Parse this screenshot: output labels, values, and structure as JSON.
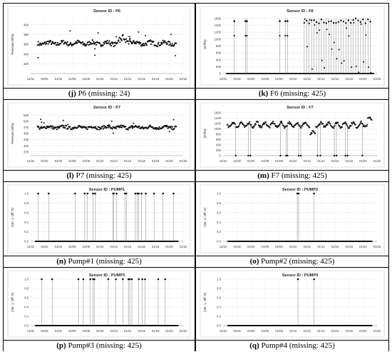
{
  "panels": [
    {
      "id": "j",
      "letter": "j",
      "caption": "P6 (missing: 24)",
      "chart_data": {
        "type": "scatter",
        "title": "Sensor ID : P6",
        "ylabel": "Pressure (kPa)",
        "ylim": [
          300,
          420
        ],
        "yticks": [
          320,
          340,
          360,
          380,
          400
        ],
        "xticks": [
          "12/31",
          "01/02",
          "01/04",
          "01/06",
          "01/08",
          "01/10",
          "01/12",
          "01/14",
          "01/16",
          "01/18",
          "01/20",
          "01/22"
        ],
        "grid": true,
        "pattern": "noisy-level",
        "base": 362
      }
    },
    {
      "id": "k",
      "letter": "k",
      "caption": "F6 (missing: 425)",
      "chart_data": {
        "type": "scatter",
        "title": "Sensor ID : F6",
        "ylabel": "(m³/hr)",
        "ylim": [
          0,
          1700
        ],
        "yticks": [
          0,
          200,
          400,
          600,
          800,
          1000,
          1200,
          1400,
          1600
        ],
        "xticks": [
          "12/31",
          "01/02",
          "01/04",
          "01/06",
          "01/08",
          "01/10",
          "01/12",
          "01/14",
          "01/16",
          "01/18",
          "01/20",
          "01/22"
        ],
        "grid": true,
        "pattern": "switching-flow",
        "base": 0,
        "high": 1600
      }
    },
    {
      "id": "l",
      "letter": "l",
      "caption": "P7 (missing: 425)",
      "chart_data": {
        "type": "scatter",
        "title": "Sensor ID : P7",
        "ylabel": "Pressure (kPa)",
        "ylim": [
          360,
          540
        ],
        "yticks": [
          375,
          400,
          425,
          450,
          475,
          500,
          525
        ],
        "xticks": [
          "12/31",
          "01/02",
          "01/04",
          "01/06",
          "01/08",
          "01/10",
          "01/12",
          "01/14",
          "01/16",
          "01/18",
          "01/20",
          "01/22"
        ],
        "grid": true,
        "pattern": "noisy-level",
        "base": 475
      }
    },
    {
      "id": "m",
      "letter": "m",
      "caption": "F7 (missing: 425)",
      "chart_data": {
        "type": "scatter",
        "title": "Sensor ID : F7",
        "ylabel": "(m³/hr)",
        "ylim": [
          0,
          1650
        ],
        "yticks": [
          0,
          200,
          400,
          600,
          800,
          1000,
          1200,
          1400,
          1600
        ],
        "xticks": [
          "12/31",
          "01/02",
          "01/04",
          "01/06",
          "01/08",
          "01/10",
          "01/12",
          "01/14",
          "01/16",
          "01/18",
          "01/20",
          "01/22"
        ],
        "grid": true,
        "pattern": "flow-band",
        "base": 1150
      }
    },
    {
      "id": "n",
      "letter": "n",
      "caption": "Pump#1 (missing: 425)",
      "chart_data": {
        "type": "scatter",
        "title": "Sensor ID : PUMP1",
        "ylabel": "(On: 1, Off: 0)",
        "ylim": [
          0,
          1
        ],
        "yticks": [
          0.0,
          0.2,
          0.4,
          0.6,
          0.8,
          1.0
        ],
        "xticks": [
          "12/31",
          "01/02",
          "01/04",
          "01/06",
          "01/08",
          "01/10",
          "01/12",
          "01/14",
          "01/16",
          "01/18",
          "01/20",
          "01/22"
        ],
        "grid": true,
        "pattern": "binary",
        "on_days": [
          1.1,
          2.6,
          6.4,
          7.8,
          8.2,
          9.0,
          9.3,
          11.9,
          12.0,
          12.4,
          13.6,
          13.8,
          15.1,
          15.4,
          15.6,
          16.0,
          16.6,
          17.8,
          19.1,
          20.6
        ]
      }
    },
    {
      "id": "o",
      "letter": "o",
      "caption": "Pump#2 (missing: 425)",
      "chart_data": {
        "type": "scatter",
        "title": "Sensor ID : PUMP2",
        "ylabel": "(On: 1, Off: 0)",
        "ylim": [
          0,
          1
        ],
        "yticks": [
          0.0,
          0.2,
          0.4,
          0.6,
          0.8,
          1.0
        ],
        "xticks": [
          "12/31",
          "01/02",
          "01/04",
          "01/06",
          "01/08",
          "01/10",
          "01/12",
          "01/14",
          "01/16",
          "01/18",
          "01/20",
          "01/22"
        ],
        "grid": true,
        "pattern": "binary",
        "on_days": [
          10.6,
          10.8,
          13.0
        ]
      }
    },
    {
      "id": "p",
      "letter": "p",
      "caption": "Pump#3 (missing: 425)",
      "chart_data": {
        "type": "scatter",
        "title": "Sensor ID : PUMP3",
        "ylabel": "(On: 1, Off: 0)",
        "ylim": [
          0,
          1
        ],
        "yticks": [
          0.0,
          0.2,
          0.4,
          0.6,
          0.8,
          1.0
        ],
        "xticks": [
          "12/31",
          "01/02",
          "01/04",
          "01/06",
          "01/08",
          "01/10",
          "01/12",
          "01/14",
          "01/16",
          "01/18",
          "01/20",
          "01/22"
        ],
        "grid": true,
        "pattern": "binary",
        "on_days": [
          1.6,
          3.1,
          6.9,
          7.6,
          8.6,
          9.0,
          9.2,
          11.2,
          12.3,
          13.3,
          14.1,
          14.3,
          14.6,
          15.6,
          16.1,
          16.5,
          18.4,
          19.4
        ]
      }
    },
    {
      "id": "q",
      "letter": "q",
      "caption": "Pump#4 (missing: 425)",
      "chart_data": {
        "type": "scatter",
        "title": "Sensor ID : PUMP4",
        "ylabel": "(On: 1, Off: 0)",
        "ylim": [
          0,
          1
        ],
        "yticks": [
          0.0,
          0.2,
          0.4,
          0.6,
          0.8,
          1.0
        ],
        "xticks": [
          "12/31",
          "01/02",
          "01/04",
          "01/06",
          "01/08",
          "01/10",
          "01/12",
          "01/14",
          "01/16",
          "01/18",
          "01/20",
          "01/22"
        ],
        "grid": true,
        "pattern": "binary",
        "on_days": [
          10.7,
          13.0
        ]
      }
    }
  ]
}
